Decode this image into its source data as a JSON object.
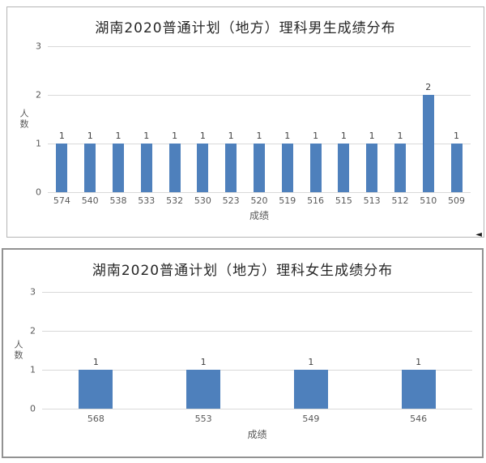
{
  "artifacts": {
    "cursor_glyph": "◄"
  },
  "chart_data": [
    {
      "type": "bar",
      "title": "湖南2020普通计划（地方）理科男生成绩分布",
      "categories": [
        "574",
        "540",
        "538",
        "533",
        "532",
        "530",
        "523",
        "520",
        "519",
        "516",
        "515",
        "513",
        "512",
        "510",
        "509"
      ],
      "values": [
        1,
        1,
        1,
        1,
        1,
        1,
        1,
        1,
        1,
        1,
        1,
        1,
        1,
        2,
        1
      ],
      "xlabel": "成绩",
      "ylabel": "人数",
      "ylim": [
        0,
        3
      ],
      "yticks": [
        0,
        1,
        2,
        3
      ],
      "grid": true,
      "legend_position": "none",
      "data_labels": true,
      "bar_color": "#4e80bc",
      "gridline_color": "#d9d9d9",
      "tick_color": "#595959",
      "label_color": "#404040",
      "title_color": "#262626"
    },
    {
      "type": "bar",
      "title": "湖南2020普通计划（地方）理科女生成绩分布",
      "categories": [
        "568",
        "553",
        "549",
        "546"
      ],
      "values": [
        1,
        1,
        1,
        1
      ],
      "xlabel": "成绩",
      "ylabel": "人数",
      "ylim": [
        0,
        3
      ],
      "yticks": [
        0,
        1,
        2,
        3
      ],
      "grid": true,
      "legend_position": "none",
      "data_labels": true,
      "bar_color": "#4e80bc",
      "gridline_color": "#d9d9d9",
      "tick_color": "#595959",
      "label_color": "#404040",
      "title_color": "#262626"
    }
  ]
}
